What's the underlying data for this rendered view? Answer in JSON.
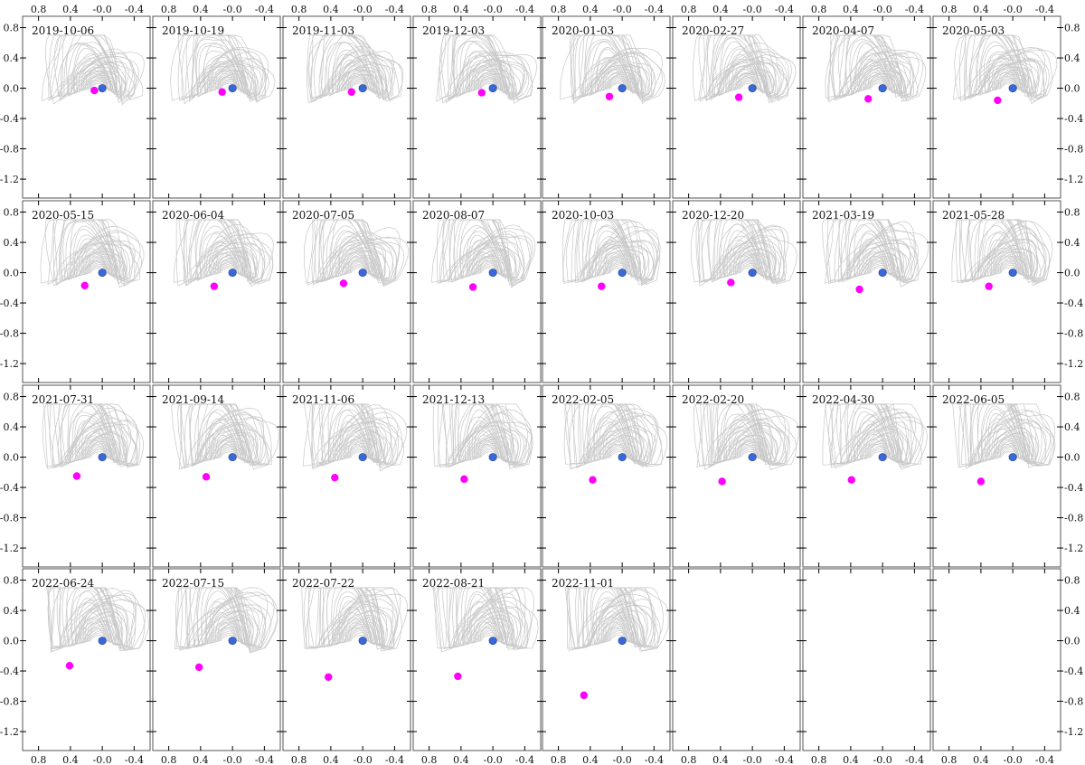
{
  "chart_data": {
    "type": "scatter",
    "grid": false,
    "x_axis": {
      "range": [
        1.0,
        -0.6
      ],
      "ticks": [
        0.8,
        0.4,
        0.0,
        -0.4
      ],
      "tick_labels": [
        "0.8",
        "0.4",
        "-0.0",
        "-0.4"
      ]
    },
    "y_axis": {
      "range": [
        -1.45,
        0.95
      ],
      "ticks": [
        0.8,
        0.4,
        0.0,
        -0.4,
        -0.8,
        -1.2
      ],
      "tick_labels": [
        "0.8",
        "0.4",
        "0.0",
        "-0.4",
        "-0.8",
        "-1.2"
      ]
    },
    "colors": {
      "core": "#3a68d8",
      "component": "#ff00ff",
      "contour": "#c8c8c8",
      "frame": "#555555"
    },
    "core_position": [
      0.0,
      0.0
    ],
    "epochs": [
      {
        "date": "2019-10-06",
        "component": [
          0.1,
          -0.03
        ]
      },
      {
        "date": "2019-10-19",
        "component": [
          0.13,
          -0.05
        ]
      },
      {
        "date": "2019-11-03",
        "component": [
          0.14,
          -0.05
        ]
      },
      {
        "date": "2019-12-03",
        "component": [
          0.14,
          -0.06
        ]
      },
      {
        "date": "2020-01-03",
        "component": [
          0.16,
          -0.11
        ]
      },
      {
        "date": "2020-02-27",
        "component": [
          0.17,
          -0.12
        ]
      },
      {
        "date": "2020-04-07",
        "component": [
          0.18,
          -0.14
        ]
      },
      {
        "date": "2020-05-03",
        "component": [
          0.19,
          -0.16
        ]
      },
      {
        "date": "2020-05-15",
        "component": [
          0.22,
          -0.17
        ]
      },
      {
        "date": "2020-06-04",
        "component": [
          0.23,
          -0.18
        ]
      },
      {
        "date": "2020-07-05",
        "component": [
          0.24,
          -0.14
        ]
      },
      {
        "date": "2020-08-07",
        "component": [
          0.25,
          -0.19
        ]
      },
      {
        "date": "2020-10-03",
        "component": [
          0.26,
          -0.18
        ]
      },
      {
        "date": "2020-12-20",
        "component": [
          0.27,
          -0.13
        ]
      },
      {
        "date": "2021-03-19",
        "component": [
          0.29,
          -0.22
        ]
      },
      {
        "date": "2021-05-28",
        "component": [
          0.3,
          -0.18
        ]
      },
      {
        "date": "2021-07-31",
        "component": [
          0.32,
          -0.25
        ]
      },
      {
        "date": "2021-09-14",
        "component": [
          0.33,
          -0.26
        ]
      },
      {
        "date": "2021-11-06",
        "component": [
          0.35,
          -0.27
        ]
      },
      {
        "date": "2021-12-13",
        "component": [
          0.36,
          -0.29
        ]
      },
      {
        "date": "2022-02-05",
        "component": [
          0.37,
          -0.3
        ]
      },
      {
        "date": "2022-02-20",
        "component": [
          0.38,
          -0.32
        ]
      },
      {
        "date": "2022-04-30",
        "component": [
          0.39,
          -0.3
        ]
      },
      {
        "date": "2022-06-05",
        "component": [
          0.4,
          -0.32
        ]
      },
      {
        "date": "2022-06-24",
        "component": [
          0.41,
          -0.33
        ]
      },
      {
        "date": "2022-07-15",
        "component": [
          0.42,
          -0.35
        ]
      },
      {
        "date": "2022-07-22",
        "component": [
          0.43,
          -0.48
        ]
      },
      {
        "date": "2022-08-21",
        "component": [
          0.44,
          -0.47
        ]
      },
      {
        "date": "2022-11-01",
        "component": [
          0.48,
          -0.72
        ]
      },
      {
        "date": "",
        "component": null
      },
      {
        "date": "",
        "component": null
      },
      {
        "date": "",
        "component": null
      }
    ]
  }
}
